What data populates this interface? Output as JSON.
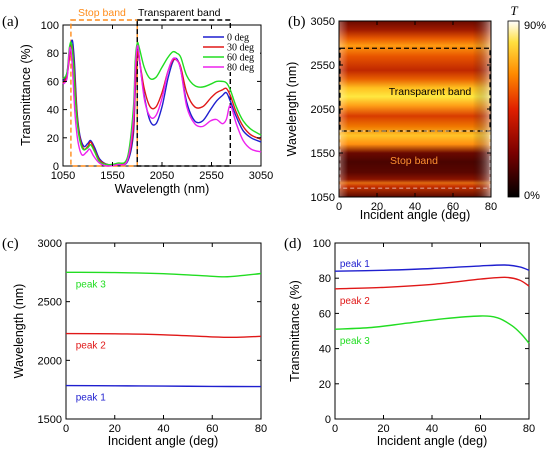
{
  "colors": {
    "blue": "#1f1fcf",
    "red": "#e01818",
    "green": "#22dd22",
    "magenta": "#ee22ee",
    "orange": "#ff8c1a",
    "black": "#000000"
  },
  "chart_data": [
    {
      "panel": "(a)",
      "type": "line",
      "xlabel": "Wavelength (nm)",
      "ylabel": "Transmittance (%)",
      "xlim": [
        1050,
        3050
      ],
      "ylim": [
        0,
        100
      ],
      "xticks": [
        1050,
        1550,
        2050,
        2550,
        3050
      ],
      "yticks": [
        0,
        20,
        40,
        60,
        80,
        100
      ],
      "legend_position": "top-right",
      "regions": [
        {
          "label": "Stop band",
          "x": [
            1130,
            1800
          ],
          "color": "#ff8c1a"
        },
        {
          "label": "Transparent band",
          "x": [
            1800,
            2740
          ],
          "color": "#000000"
        }
      ],
      "series": [
        {
          "name": "0 deg",
          "color": "#1f1fcf",
          "points": [
            [
              1050,
              60
            ],
            [
              1090,
              66
            ],
            [
              1120,
              82
            ],
            [
              1145,
              89
            ],
            [
              1165,
              74
            ],
            [
              1190,
              40
            ],
            [
              1220,
              22
            ],
            [
              1260,
              14
            ],
            [
              1300,
              16
            ],
            [
              1330,
              18
            ],
            [
              1370,
              13
            ],
            [
              1420,
              5
            ],
            [
              1500,
              1
            ],
            [
              1600,
              1
            ],
            [
              1700,
              3
            ],
            [
              1760,
              22
            ],
            [
              1780,
              55
            ],
            [
              1800,
              80
            ],
            [
              1820,
              76
            ],
            [
              1870,
              50
            ],
            [
              1930,
              32
            ],
            [
              1990,
              30
            ],
            [
              2050,
              42
            ],
            [
              2110,
              62
            ],
            [
              2160,
              74
            ],
            [
              2200,
              76
            ],
            [
              2240,
              68
            ],
            [
              2300,
              45
            ],
            [
              2380,
              32
            ],
            [
              2460,
              32
            ],
            [
              2540,
              40
            ],
            [
              2600,
              46
            ],
            [
              2660,
              50
            ],
            [
              2700,
              52
            ],
            [
              2740,
              46
            ],
            [
              2800,
              35
            ],
            [
              2870,
              25
            ],
            [
              2950,
              20
            ],
            [
              3050,
              17
            ]
          ]
        },
        {
          "name": "30 deg",
          "color": "#e01818",
          "points": [
            [
              1050,
              59
            ],
            [
              1090,
              64
            ],
            [
              1120,
              79
            ],
            [
              1140,
              86
            ],
            [
              1160,
              72
            ],
            [
              1190,
              38
            ],
            [
              1220,
              20
            ],
            [
              1260,
              12
            ],
            [
              1300,
              14
            ],
            [
              1330,
              17
            ],
            [
              1370,
              11
            ],
            [
              1420,
              4
            ],
            [
              1500,
              1
            ],
            [
              1600,
              1
            ],
            [
              1700,
              4
            ],
            [
              1760,
              26
            ],
            [
              1780,
              58
            ],
            [
              1800,
              80
            ],
            [
              1820,
              76
            ],
            [
              1870,
              55
            ],
            [
              1930,
              42
            ],
            [
              1990,
              42
            ],
            [
              2050,
              52
            ],
            [
              2110,
              67
            ],
            [
              2160,
              75
            ],
            [
              2200,
              75
            ],
            [
              2240,
              70
            ],
            [
              2300,
              52
            ],
            [
              2380,
              42
            ],
            [
              2460,
              42
            ],
            [
              2540,
              48
            ],
            [
              2600,
              52
            ],
            [
              2660,
              54
            ],
            [
              2700,
              55
            ],
            [
              2740,
              50
            ],
            [
              2800,
              38
            ],
            [
              2870,
              28
            ],
            [
              2950,
              22
            ],
            [
              3050,
              19
            ]
          ]
        },
        {
          "name": "60 deg",
          "color": "#22dd22",
          "points": [
            [
              1050,
              62
            ],
            [
              1090,
              66
            ],
            [
              1115,
              84
            ],
            [
              1135,
              87
            ],
            [
              1155,
              73
            ],
            [
              1180,
              42
            ],
            [
              1210,
              22
            ],
            [
              1250,
              12
            ],
            [
              1300,
              13
            ],
            [
              1330,
              15
            ],
            [
              1370,
              10
            ],
            [
              1420,
              3
            ],
            [
              1500,
              1
            ],
            [
              1600,
              2
            ],
            [
              1700,
              6
            ],
            [
              1760,
              40
            ],
            [
              1780,
              75
            ],
            [
              1800,
              87
            ],
            [
              1820,
              84
            ],
            [
              1870,
              70
            ],
            [
              1930,
              62
            ],
            [
              1990,
              63
            ],
            [
              2050,
              70
            ],
            [
              2110,
              77
            ],
            [
              2160,
              81
            ],
            [
              2200,
              80
            ],
            [
              2240,
              77
            ],
            [
              2300,
              64
            ],
            [
              2380,
              57
            ],
            [
              2460,
              56
            ],
            [
              2540,
              58
            ],
            [
              2600,
              60
            ],
            [
              2660,
              60
            ],
            [
              2700,
              59
            ],
            [
              2740,
              54
            ],
            [
              2800,
              42
            ],
            [
              2870,
              32
            ],
            [
              2950,
              26
            ],
            [
              3050,
              22
            ]
          ]
        },
        {
          "name": "80 deg",
          "color": "#ee22ee",
          "points": [
            [
              1050,
              58
            ],
            [
              1090,
              62
            ],
            [
              1110,
              78
            ],
            [
              1125,
              84
            ],
            [
              1145,
              70
            ],
            [
              1170,
              38
            ],
            [
              1200,
              18
            ],
            [
              1240,
              8
            ],
            [
              1290,
              10
            ],
            [
              1320,
              12
            ],
            [
              1360,
              7
            ],
            [
              1420,
              2
            ],
            [
              1500,
              0
            ],
            [
              1600,
              1
            ],
            [
              1700,
              4
            ],
            [
              1760,
              32
            ],
            [
              1780,
              68
            ],
            [
              1800,
              85
            ],
            [
              1820,
              78
            ],
            [
              1870,
              48
            ],
            [
              1930,
              35
            ],
            [
              1990,
              36
            ],
            [
              2050,
              48
            ],
            [
              2110,
              67
            ],
            [
              2160,
              76
            ],
            [
              2200,
              75
            ],
            [
              2240,
              68
            ],
            [
              2300,
              42
            ],
            [
              2380,
              30
            ],
            [
              2460,
              28
            ],
            [
              2540,
              32
            ],
            [
              2600,
              33
            ],
            [
              2660,
              30
            ],
            [
              2700,
              33
            ],
            [
              2740,
              43
            ],
            [
              2800,
              30
            ],
            [
              2870,
              18
            ],
            [
              2950,
              12
            ],
            [
              3050,
              10
            ]
          ]
        }
      ]
    },
    {
      "panel": "(b)",
      "type": "heatmap",
      "xlabel": "Incident angle (deg)",
      "ylabel": "Wavelength (nm)",
      "xlim": [
        0,
        80
      ],
      "ylim": [
        1050,
        3050
      ],
      "xticks": [
        0,
        20,
        40,
        60,
        80
      ],
      "yticks": [
        1050,
        1550,
        2050,
        2550,
        3050
      ],
      "colorbar": {
        "symbol": "T",
        "max_label": "90%",
        "min_label": "0%",
        "range": [
          0,
          90
        ]
      },
      "regions": [
        {
          "label": "Transparent band",
          "y": [
            1800,
            2740
          ]
        },
        {
          "label": "Stop band",
          "y": [
            1150,
            1800
          ]
        }
      ]
    },
    {
      "panel": "(c)",
      "type": "line",
      "xlabel": "Incident angle (deg)",
      "ylabel": "Wavelength (nm)",
      "xlim": [
        0,
        80
      ],
      "ylim": [
        1500,
        3000
      ],
      "xticks": [
        0,
        20,
        40,
        60,
        80
      ],
      "yticks": [
        1500,
        2000,
        2500,
        3000
      ],
      "series": [
        {
          "name": "peak 3",
          "color": "#22dd22",
          "points": [
            [
              0,
              2750
            ],
            [
              20,
              2748
            ],
            [
              40,
              2738
            ],
            [
              55,
              2722
            ],
            [
              65,
              2712
            ],
            [
              72,
              2722
            ],
            [
              80,
              2740
            ]
          ]
        },
        {
          "name": "peak 2",
          "color": "#e01818",
          "points": [
            [
              0,
              2228
            ],
            [
              20,
              2226
            ],
            [
              40,
              2218
            ],
            [
              60,
              2200
            ],
            [
              70,
              2196
            ],
            [
              80,
              2205
            ]
          ]
        },
        {
          "name": "peak 1",
          "color": "#1f1fcf",
          "points": [
            [
              0,
              1785
            ],
            [
              20,
              1783
            ],
            [
              40,
              1780
            ],
            [
              60,
              1778
            ],
            [
              80,
              1776
            ]
          ]
        }
      ]
    },
    {
      "panel": "(d)",
      "type": "line",
      "xlabel": "Incident angle (deg)",
      "ylabel": "Transmittance (%)",
      "xlim": [
        0,
        80
      ],
      "ylim": [
        0,
        100
      ],
      "xticks": [
        0,
        20,
        40,
        60,
        80
      ],
      "yticks": [
        0,
        20,
        40,
        60,
        80,
        100
      ],
      "series": [
        {
          "name": "peak 1",
          "color": "#1f1fcf",
          "points": [
            [
              0,
              84
            ],
            [
              20,
              84.5
            ],
            [
              40,
              85.5
            ],
            [
              60,
              87
            ],
            [
              70,
              87.5
            ],
            [
              76,
              86.5
            ],
            [
              80,
              84.5
            ]
          ]
        },
        {
          "name": "peak 2",
          "color": "#e01818",
          "points": [
            [
              0,
              74
            ],
            [
              20,
              74.8
            ],
            [
              40,
              76.5
            ],
            [
              60,
              79.5
            ],
            [
              70,
              80.5
            ],
            [
              76,
              79
            ],
            [
              80,
              75.5
            ]
          ]
        },
        {
          "name": "peak 3",
          "color": "#22dd22",
          "points": [
            [
              0,
              51
            ],
            [
              15,
              52
            ],
            [
              30,
              54.5
            ],
            [
              45,
              57
            ],
            [
              60,
              58.5
            ],
            [
              67,
              57.5
            ],
            [
              73,
              53
            ],
            [
              77,
              48
            ],
            [
              80,
              43
            ]
          ]
        }
      ]
    }
  ]
}
